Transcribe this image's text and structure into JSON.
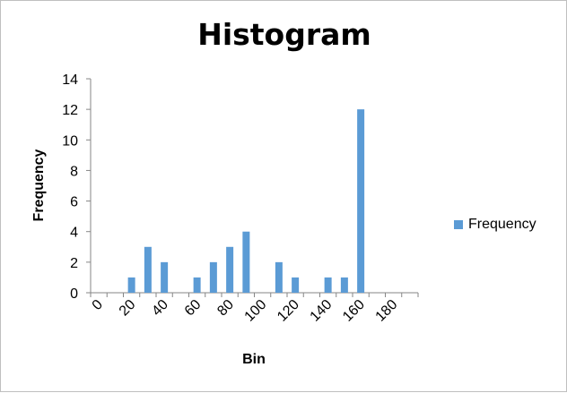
{
  "chart_data": {
    "type": "bar",
    "title": "Histogram",
    "xlabel": "Bin",
    "ylabel": "Frequency",
    "ylim": [
      0,
      14
    ],
    "yticks": [
      "0",
      "2",
      "4",
      "6",
      "8",
      "10",
      "12",
      "14"
    ],
    "xtick_labels": [
      "0",
      "20",
      "40",
      "60",
      "80",
      "100",
      "120",
      "140",
      "160",
      "180"
    ],
    "categories": [
      "0",
      "10",
      "20",
      "30",
      "40",
      "50",
      "60",
      "70",
      "80",
      "90",
      "100",
      "110",
      "120",
      "130",
      "140",
      "150",
      "160",
      "170",
      "180",
      "190"
    ],
    "series": [
      {
        "name": "Frequency",
        "color": "#5b9bd5",
        "values": [
          0,
          0,
          1,
          3,
          2,
          0,
          1,
          2,
          3,
          4,
          0,
          2,
          1,
          0,
          1,
          1,
          12,
          0,
          0,
          0
        ]
      }
    ],
    "legend_position": "right",
    "grid": false
  }
}
